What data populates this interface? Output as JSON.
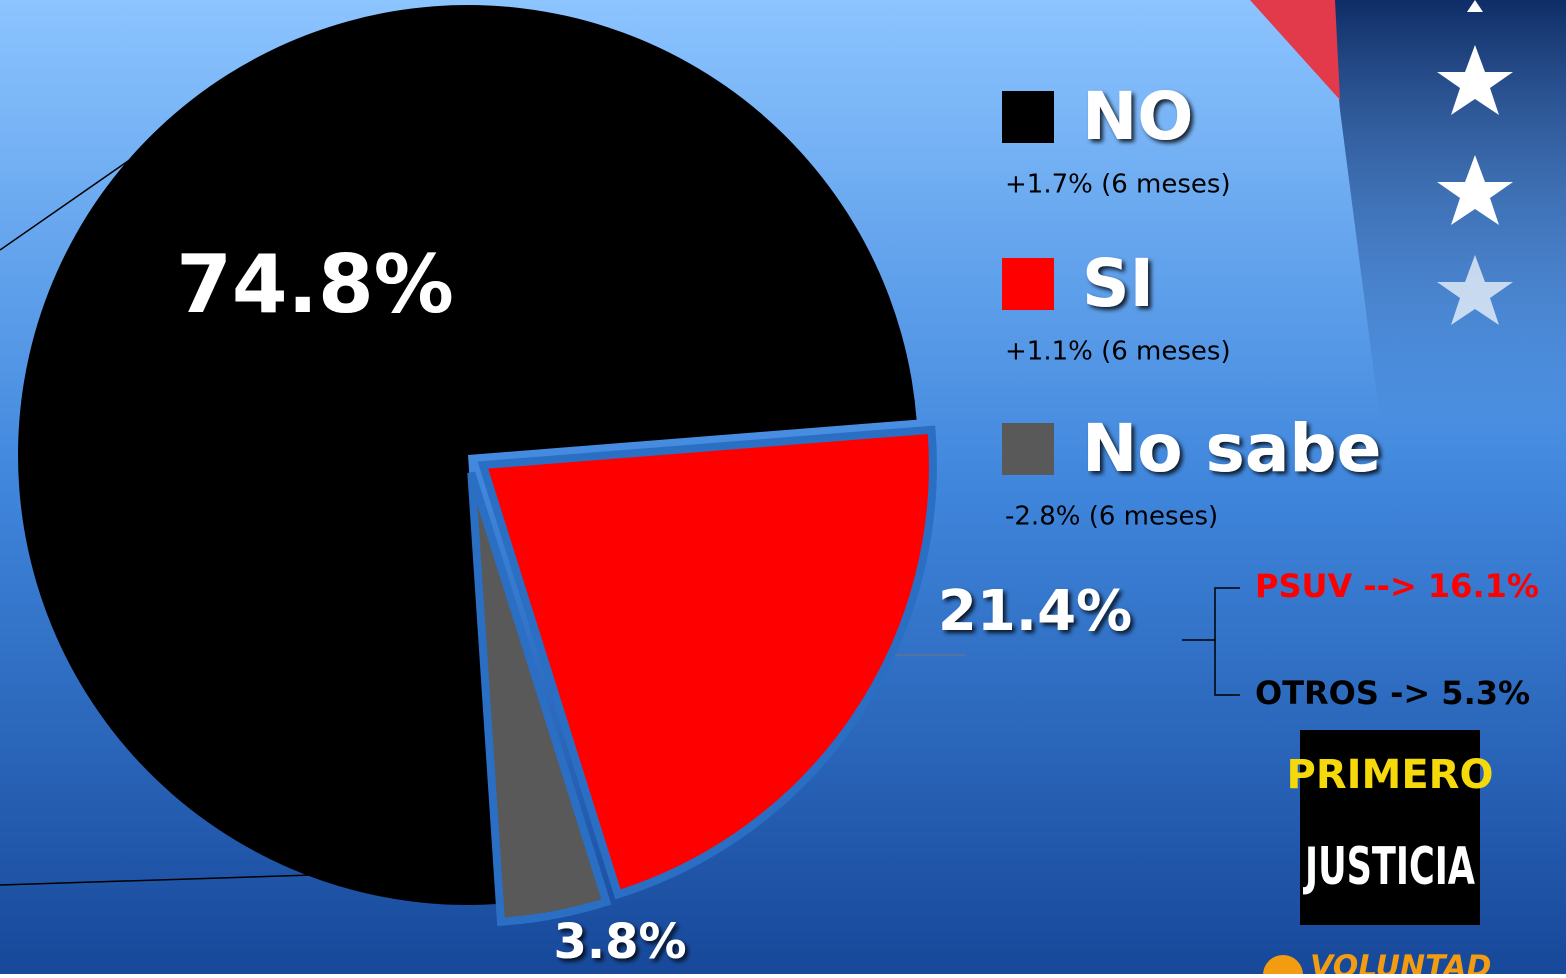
{
  "chart_data": {
    "type": "pie",
    "categories": [
      "NO",
      "SI",
      "No sabe"
    ],
    "values": [
      74.8,
      21.4,
      3.8
    ],
    "value_labels": [
      "74.8%",
      "21.4%",
      "3.8%"
    ],
    "colors": [
      "#000000",
      "#ff0000",
      "#595959"
    ],
    "legend_notes": [
      "+1.7% (6 meses)",
      "+1.1% (6 meses)",
      "-2.8% (6 meses)"
    ],
    "annotations": [
      "PSUV --> 16.1%",
      "OTROS -> 5.3%"
    ]
  },
  "logos": [
    "PRIMERO",
    "JUSTICIA",
    "VOLUNTAD"
  ]
}
